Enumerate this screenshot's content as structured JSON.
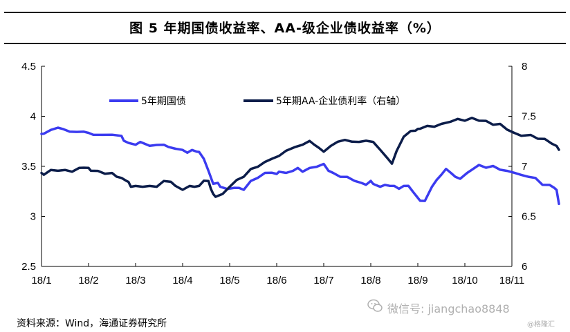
{
  "title": "图    5 年期国债收益率、AA-级企业债收益率（%）",
  "source": "资料来源：Wind，海通证券研究所",
  "watermark": {
    "wechat": "微信号: jiangchao8848",
    "brand": "@格隆汇"
  },
  "colors": {
    "series1": "#3b3bf0",
    "series2": "#0c1d4a",
    "axis": "#000000"
  },
  "chart_data": {
    "type": "line",
    "x_tick_labels": [
      "18/1",
      "18/2",
      "18/3",
      "18/4",
      "18/5",
      "18/6",
      "18/7",
      "18/8",
      "18/9",
      "18/10",
      "18/11"
    ],
    "left_axis": {
      "ylim": [
        2.5,
        4.5
      ],
      "ticks": [
        "2.5",
        "3",
        "3.5",
        "4",
        "4.5"
      ]
    },
    "right_axis": {
      "ylim": [
        6,
        8
      ],
      "ticks": [
        "6",
        "6.5",
        "7",
        "7.5",
        "8"
      ]
    },
    "legend_placement": "top-left",
    "grid": false,
    "series": [
      {
        "name": "5年期国债",
        "axis": "left",
        "x": [
          0,
          0.05,
          0.2,
          0.35,
          0.45,
          0.6,
          0.75,
          0.9,
          1.0,
          1.1,
          1.3,
          1.5,
          1.7,
          1.75,
          1.85,
          2.0,
          2.1,
          2.3,
          2.45,
          2.6,
          2.7,
          2.85,
          3.0,
          3.1,
          3.2,
          3.3,
          3.35,
          3.45,
          3.55,
          3.65,
          3.75,
          3.8,
          3.95,
          4.1,
          4.2,
          4.3,
          4.45,
          4.6,
          4.75,
          4.9,
          5.0,
          5.05,
          5.2,
          5.35,
          5.45,
          5.55,
          5.7,
          5.85,
          6.0,
          6.1,
          6.2,
          6.35,
          6.5,
          6.65,
          6.8,
          6.9,
          7.0,
          7.05,
          7.1,
          7.2,
          7.3,
          7.4,
          7.5,
          7.6,
          7.7,
          7.8,
          7.9,
          8.05,
          8.15,
          8.3,
          8.4,
          8.5,
          8.6,
          8.7,
          8.8,
          8.9,
          9.05,
          9.15,
          9.3,
          9.45,
          9.6,
          9.75,
          9.9,
          10.05,
          10.2,
          10.35,
          10.5,
          10.65,
          10.8,
          10.9,
          10.95,
          11.0
        ],
        "values": [
          3.82,
          3.83,
          3.86,
          3.89,
          3.87,
          3.85,
          3.84,
          3.85,
          3.83,
          3.82,
          3.81,
          3.82,
          3.8,
          3.76,
          3.73,
          3.72,
          3.74,
          3.71,
          3.71,
          3.72,
          3.69,
          3.68,
          3.66,
          3.64,
          3.66,
          3.65,
          3.64,
          3.58,
          3.45,
          3.33,
          3.33,
          3.3,
          3.27,
          3.29,
          3.28,
          3.27,
          3.35,
          3.39,
          3.43,
          3.44,
          3.42,
          3.45,
          3.43,
          3.46,
          3.48,
          3.45,
          3.48,
          3.5,
          3.52,
          3.46,
          3.43,
          3.4,
          3.39,
          3.36,
          3.33,
          3.32,
          3.35,
          3.33,
          3.31,
          3.3,
          3.31,
          3.31,
          3.3,
          3.28,
          3.3,
          3.31,
          3.24,
          3.16,
          3.15,
          3.3,
          3.36,
          3.42,
          3.47,
          3.44,
          3.39,
          3.38,
          3.43,
          3.47,
          3.51,
          3.49,
          3.5,
          3.47,
          3.45,
          3.44,
          3.41,
          3.4,
          3.38,
          3.32,
          3.31,
          3.29,
          3.26,
          3.13
        ]
      },
      {
        "name": "5年期AA-企业债利率（右轴）",
        "axis": "right",
        "x": [
          0,
          0.05,
          0.2,
          0.35,
          0.5,
          0.65,
          0.8,
          0.9,
          1.0,
          1.05,
          1.2,
          1.35,
          1.5,
          1.6,
          1.7,
          1.8,
          1.85,
          1.9,
          2.0,
          2.15,
          2.3,
          2.45,
          2.6,
          2.75,
          2.85,
          3.0,
          3.15,
          3.25,
          3.35,
          3.45,
          3.55,
          3.6,
          3.65,
          3.7,
          3.85,
          4.0,
          4.15,
          4.3,
          4.45,
          4.6,
          4.75,
          4.9,
          5.05,
          5.2,
          5.4,
          5.55,
          5.7,
          5.8,
          5.9,
          6.0,
          6.15,
          6.3,
          6.45,
          6.6,
          6.75,
          6.9,
          7.05,
          7.2,
          7.35,
          7.45,
          7.55,
          7.7,
          7.85,
          7.95,
          8.0,
          8.05,
          8.2,
          8.35,
          8.5,
          8.7,
          8.85,
          9.0,
          9.15,
          9.3,
          9.45,
          9.6,
          9.75,
          9.9,
          10.05,
          10.2,
          10.4,
          10.55,
          10.7,
          10.85,
          10.95,
          11.0
        ],
        "values": [
          6.93,
          6.92,
          6.96,
          6.96,
          6.96,
          6.95,
          6.98,
          6.99,
          6.98,
          6.96,
          6.95,
          6.93,
          6.93,
          6.9,
          6.88,
          6.86,
          6.84,
          6.8,
          6.8,
          6.8,
          6.8,
          6.8,
          6.85,
          6.85,
          6.8,
          6.77,
          6.8,
          6.8,
          6.8,
          6.86,
          6.85,
          6.78,
          6.72,
          6.7,
          6.72,
          6.8,
          6.86,
          6.9,
          6.97,
          7.0,
          7.04,
          7.08,
          7.1,
          7.16,
          7.19,
          7.22,
          7.25,
          7.22,
          7.18,
          7.15,
          7.2,
          7.25,
          7.26,
          7.25,
          7.24,
          7.26,
          7.24,
          7.17,
          7.08,
          7.03,
          7.15,
          7.3,
          7.35,
          7.36,
          7.37,
          7.38,
          7.4,
          7.4,
          7.42,
          7.45,
          7.47,
          7.46,
          7.48,
          7.46,
          7.45,
          7.42,
          7.42,
          7.37,
          7.33,
          7.31,
          7.31,
          7.28,
          7.27,
          7.23,
          7.2,
          7.17
        ]
      }
    ]
  }
}
